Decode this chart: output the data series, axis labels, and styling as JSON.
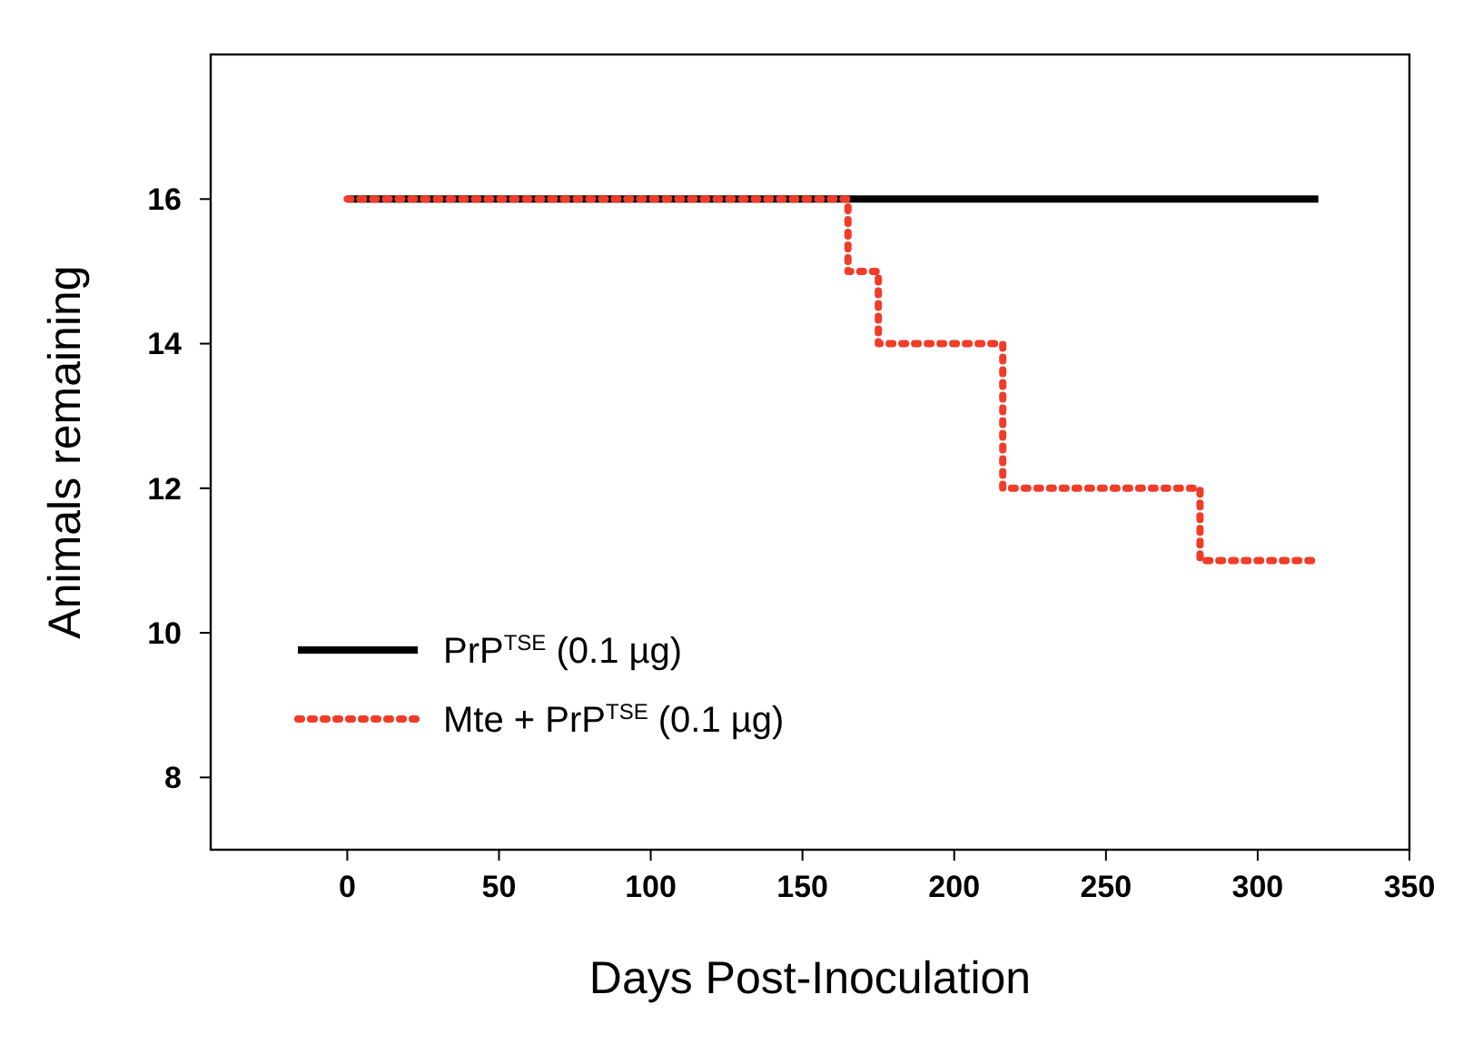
{
  "chart_data": {
    "type": "step",
    "xlabel": "Days Post-Inoculation",
    "ylabel": "Animals remaining",
    "xlim": [
      -45,
      350
    ],
    "xticks": [
      0,
      50,
      100,
      150,
      200,
      250,
      300,
      350
    ],
    "ylim": [
      7,
      18
    ],
    "yticks": [
      8,
      10,
      12,
      14,
      16
    ],
    "series": [
      {
        "name": "PrP$^{TSE}$ (0.1 µg)",
        "color": "#000000",
        "line_style": "solid",
        "x": [
          0,
          320
        ],
        "values": [
          16,
          16
        ]
      },
      {
        "name": "Mte + PrP$^{TSE}$ (0.1 µg)",
        "color": "#f03c28",
        "line_style": "dotted",
        "x": [
          0,
          165,
          175,
          216,
          281,
          318
        ],
        "values": [
          16,
          15,
          14,
          12,
          11,
          11
        ]
      }
    ],
    "legend": "bottom left",
    "grid": false
  }
}
